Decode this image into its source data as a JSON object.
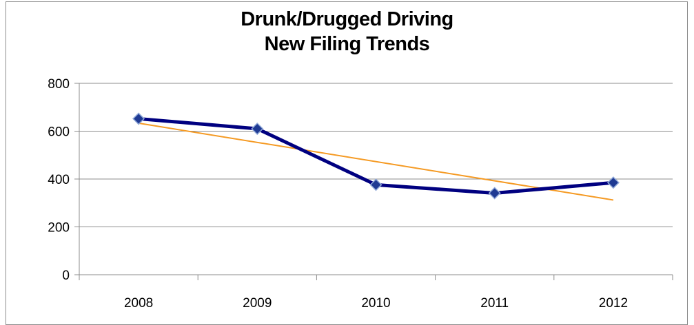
{
  "chart_data": {
    "type": "line",
    "title_lines": [
      "Drunk/Drugged Driving",
      "New Filing Trends"
    ],
    "categories": [
      "2008",
      "2009",
      "2010",
      "2011",
      "2012"
    ],
    "series": [
      {
        "values": [
          652,
          610,
          376,
          341,
          385
        ],
        "color": "#000080",
        "marker": "diamond",
        "marker_color": "#1f3a93"
      }
    ],
    "trendline": {
      "type": "linear",
      "color": "#f59a23"
    },
    "ylim": [
      0,
      800
    ],
    "yticks": [
      0,
      200,
      400,
      600,
      800
    ],
    "grid": true,
    "legend": "none"
  }
}
